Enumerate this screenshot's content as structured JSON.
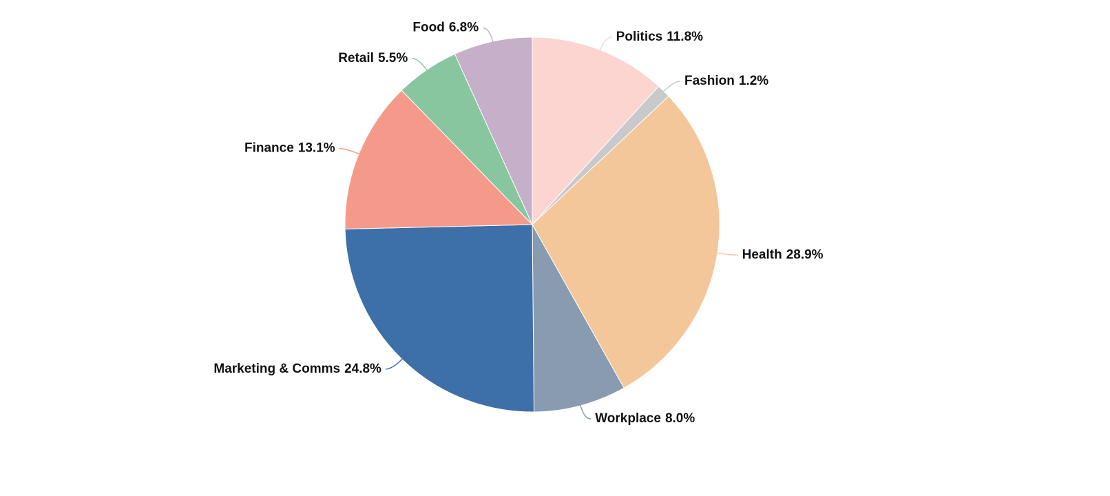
{
  "chart_data": {
    "type": "pie",
    "categories": [
      "Politics",
      "Fashion",
      "Health",
      "Workplace",
      "Marketing & Comms",
      "Finance",
      "Retail",
      "Food"
    ],
    "values": [
      11.8,
      1.2,
      28.9,
      8.0,
      24.8,
      13.1,
      5.5,
      6.8
    ],
    "value_labels": [
      "11.8%",
      "1.2%",
      "28.9%",
      "8.0%",
      "24.8%",
      "13.1%",
      "5.5%",
      "6.8%"
    ],
    "colors": [
      "#fdd5d0",
      "#c8c9cb",
      "#f3c799",
      "#889bb0",
      "#3d6fa8",
      "#f5998b",
      "#88c6a0",
      "#c6afc8"
    ]
  }
}
